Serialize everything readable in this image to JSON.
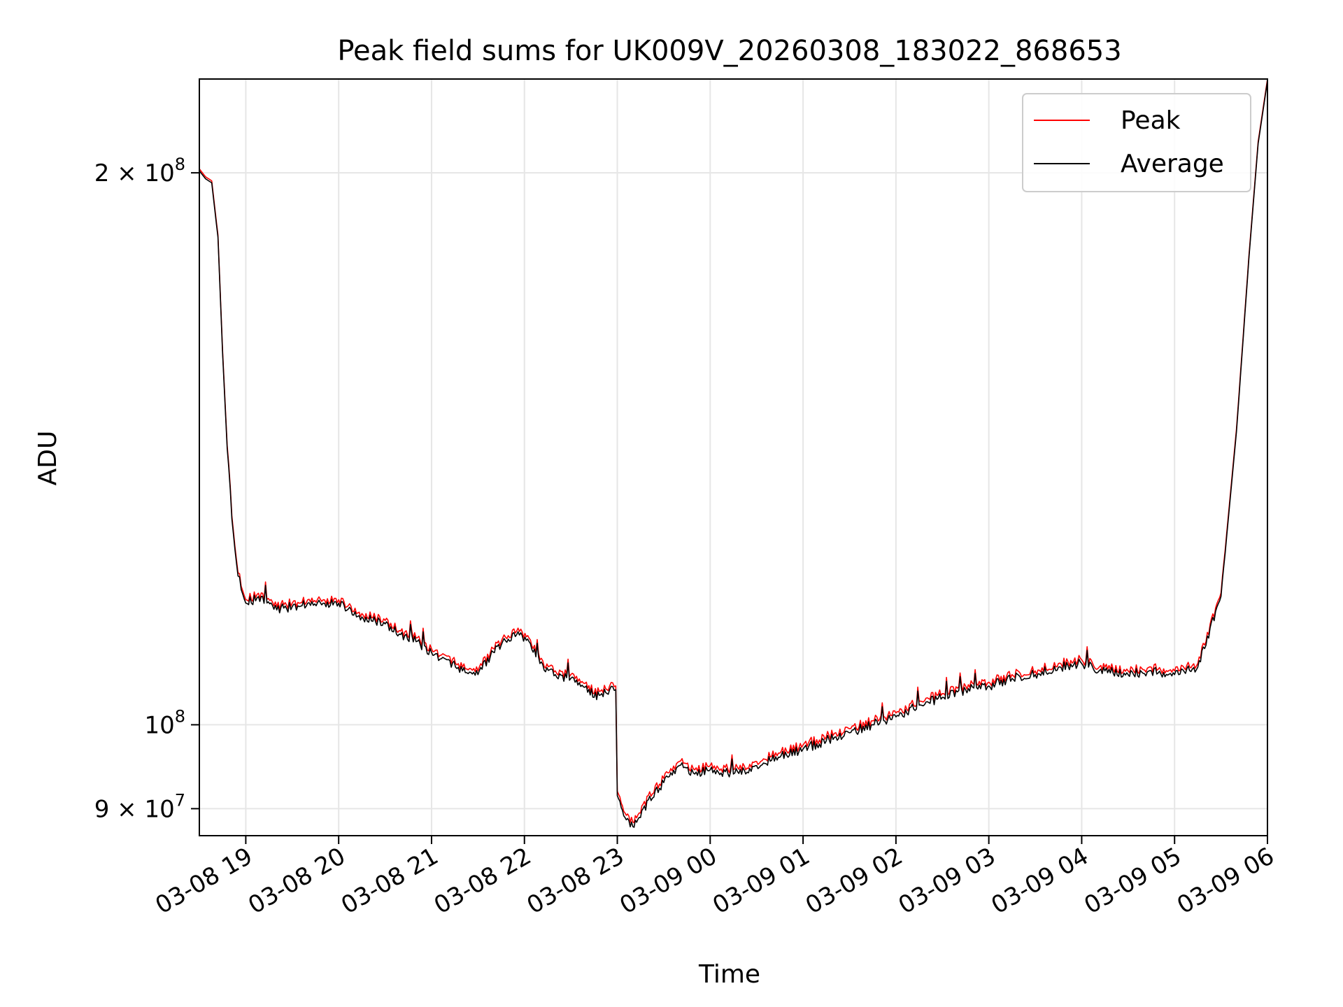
{
  "chart_data": {
    "type": "line",
    "title": "Peak field sums for UK009V_20260308_183022_868653",
    "xlabel": "Time",
    "ylabel": "ADU",
    "yscale": "log",
    "xlim": [
      "2026-03-08 18:30",
      "2026-03-09 06:00"
    ],
    "ylim": [
      87000000,
      225000000
    ],
    "xticks": [
      {
        "value": "2026-03-08 19:00",
        "label": "03-08 19"
      },
      {
        "value": "2026-03-08 20:00",
        "label": "03-08 20"
      },
      {
        "value": "2026-03-08 21:00",
        "label": "03-08 21"
      },
      {
        "value": "2026-03-08 22:00",
        "label": "03-08 22"
      },
      {
        "value": "2026-03-08 23:00",
        "label": "03-08 23"
      },
      {
        "value": "2026-03-09 00:00",
        "label": "03-09 00"
      },
      {
        "value": "2026-03-09 01:00",
        "label": "03-09 01"
      },
      {
        "value": "2026-03-09 02:00",
        "label": "03-09 02"
      },
      {
        "value": "2026-03-09 03:00",
        "label": "03-09 03"
      },
      {
        "value": "2026-03-09 04:00",
        "label": "03-09 04"
      },
      {
        "value": "2026-03-09 05:00",
        "label": "03-09 05"
      },
      {
        "value": "2026-03-09 06:00",
        "label": "03-09 06"
      }
    ],
    "yticks": [
      {
        "value": 200000000,
        "label": "2 × 10",
        "exp": "8"
      },
      {
        "value": 100000000,
        "label": "10",
        "exp": "8"
      },
      {
        "value": 90000000,
        "label": "9 × 10",
        "exp": "7"
      }
    ],
    "grid": true,
    "legend_position": "top-right",
    "series": [
      {
        "name": "Peak",
        "color": "#ff0000",
        "x": [
          "2026-03-08 18:30",
          "2026-03-08 18:34",
          "2026-03-08 18:38",
          "2026-03-08 18:42",
          "2026-03-08 18:45",
          "2026-03-08 18:48",
          "2026-03-08 18:51",
          "2026-03-08 18:54",
          "2026-03-08 18:57",
          "2026-03-08 19:00",
          "2026-03-08 19:10",
          "2026-03-08 19:20",
          "2026-03-08 19:30",
          "2026-03-08 19:40",
          "2026-03-08 19:50",
          "2026-03-08 20:00",
          "2026-03-08 20:15",
          "2026-03-08 20:30",
          "2026-03-08 20:40",
          "2026-03-08 20:50",
          "2026-03-08 21:00",
          "2026-03-08 21:10",
          "2026-03-08 21:20",
          "2026-03-08 21:30",
          "2026-03-08 21:38",
          "2026-03-08 21:45",
          "2026-03-08 21:55",
          "2026-03-08 22:03",
          "2026-03-08 22:10",
          "2026-03-08 22:20",
          "2026-03-08 22:30",
          "2026-03-08 22:40",
          "2026-03-08 22:45",
          "2026-03-08 22:50",
          "2026-03-08 22:55",
          "2026-03-08 22:59",
          "2026-03-08 23:00",
          "2026-03-08 23:05",
          "2026-03-08 23:10",
          "2026-03-08 23:15",
          "2026-03-08 23:20",
          "2026-03-08 23:30",
          "2026-03-08 23:40",
          "2026-03-08 23:50",
          "2026-03-09 00:00",
          "2026-03-09 00:15",
          "2026-03-09 00:30",
          "2026-03-09 00:45",
          "2026-03-09 01:00",
          "2026-03-09 01:15",
          "2026-03-09 01:30",
          "2026-03-09 01:45",
          "2026-03-09 02:00",
          "2026-03-09 02:15",
          "2026-03-09 02:30",
          "2026-03-09 02:45",
          "2026-03-09 03:00",
          "2026-03-09 03:15",
          "2026-03-09 03:30",
          "2026-03-09 03:45",
          "2026-03-09 04:00",
          "2026-03-09 04:15",
          "2026-03-09 04:30",
          "2026-03-09 04:45",
          "2026-03-09 05:00",
          "2026-03-09 05:15",
          "2026-03-09 05:30",
          "2026-03-09 05:40",
          "2026-03-09 05:48",
          "2026-03-09 05:54",
          "2026-03-09 06:00"
        ],
        "values": [
          201000000,
          199000000,
          198000000,
          185000000,
          160000000,
          142000000,
          130000000,
          123000000,
          119000000,
          117000000,
          118000000,
          116000000,
          116500000,
          117000000,
          117000000,
          117000000,
          115000000,
          114000000,
          112500000,
          111500000,
          110000000,
          109000000,
          107500000,
          107000000,
          109500000,
          111000000,
          112500000,
          111500000,
          108500000,
          107000000,
          106500000,
          105500000,
          104000000,
          104500000,
          105000000,
          105000000,
          92000000,
          89500000,
          88500000,
          89500000,
          91500000,
          93500000,
          95500000,
          94500000,
          95000000,
          94500000,
          95500000,
          96500000,
          97500000,
          98500000,
          99500000,
          100500000,
          101500000,
          103000000,
          104000000,
          105000000,
          105500000,
          106500000,
          107000000,
          108000000,
          108500000,
          107500000,
          107000000,
          107500000,
          107000000,
          108000000,
          118000000,
          145000000,
          180000000,
          208000000,
          225000000
        ]
      },
      {
        "name": "Average",
        "color": "#000000",
        "x": [
          "2026-03-08 18:30",
          "2026-03-08 18:34",
          "2026-03-08 18:38",
          "2026-03-08 18:42",
          "2026-03-08 18:45",
          "2026-03-08 18:48",
          "2026-03-08 18:51",
          "2026-03-08 18:54",
          "2026-03-08 18:57",
          "2026-03-08 19:00",
          "2026-03-08 19:10",
          "2026-03-08 19:20",
          "2026-03-08 19:30",
          "2026-03-08 19:40",
          "2026-03-08 19:50",
          "2026-03-08 20:00",
          "2026-03-08 20:15",
          "2026-03-08 20:30",
          "2026-03-08 20:40",
          "2026-03-08 20:50",
          "2026-03-08 21:00",
          "2026-03-08 21:10",
          "2026-03-08 21:20",
          "2026-03-08 21:30",
          "2026-03-08 21:38",
          "2026-03-08 21:45",
          "2026-03-08 21:55",
          "2026-03-08 22:03",
          "2026-03-08 22:10",
          "2026-03-08 22:20",
          "2026-03-08 22:30",
          "2026-03-08 22:40",
          "2026-03-08 22:45",
          "2026-03-08 22:50",
          "2026-03-08 22:55",
          "2026-03-08 22:59",
          "2026-03-08 23:00",
          "2026-03-08 23:05",
          "2026-03-08 23:10",
          "2026-03-08 23:15",
          "2026-03-08 23:20",
          "2026-03-08 23:30",
          "2026-03-08 23:40",
          "2026-03-08 23:50",
          "2026-03-09 00:00",
          "2026-03-09 00:15",
          "2026-03-09 00:30",
          "2026-03-09 00:45",
          "2026-03-09 01:00",
          "2026-03-09 01:15",
          "2026-03-09 01:30",
          "2026-03-09 01:45",
          "2026-03-09 02:00",
          "2026-03-09 02:15",
          "2026-03-09 02:30",
          "2026-03-09 02:45",
          "2026-03-09 03:00",
          "2026-03-09 03:15",
          "2026-03-09 03:30",
          "2026-03-09 03:45",
          "2026-03-09 04:00",
          "2026-03-09 04:15",
          "2026-03-09 04:30",
          "2026-03-09 04:45",
          "2026-03-09 05:00",
          "2026-03-09 05:15",
          "2026-03-09 05:30",
          "2026-03-09 05:40",
          "2026-03-09 05:48",
          "2026-03-09 05:54",
          "2026-03-09 06:00"
        ],
        "values": [
          200500000,
          198500000,
          197500000,
          184500000,
          159500000,
          141500000,
          129500000,
          122500000,
          118500000,
          116500000,
          117500000,
          115500000,
          116000000,
          116500000,
          116500000,
          116500000,
          114500000,
          113500000,
          112000000,
          111000000,
          109500000,
          108500000,
          107000000,
          106500000,
          109000000,
          110500000,
          112000000,
          111000000,
          108000000,
          106500000,
          106000000,
          105000000,
          103500000,
          104000000,
          104500000,
          104500000,
          91500000,
          89000000,
          88000000,
          89000000,
          91000000,
          93000000,
          95000000,
          94000000,
          94500000,
          94000000,
          95000000,
          96000000,
          97000000,
          98000000,
          99000000,
          100000000,
          101000000,
          102500000,
          103500000,
          104500000,
          105000000,
          106000000,
          106500000,
          107500000,
          108000000,
          107000000,
          106500000,
          107000000,
          106500000,
          107500000,
          117500000,
          144500000,
          179500000,
          207500000,
          224500000
        ]
      }
    ]
  }
}
